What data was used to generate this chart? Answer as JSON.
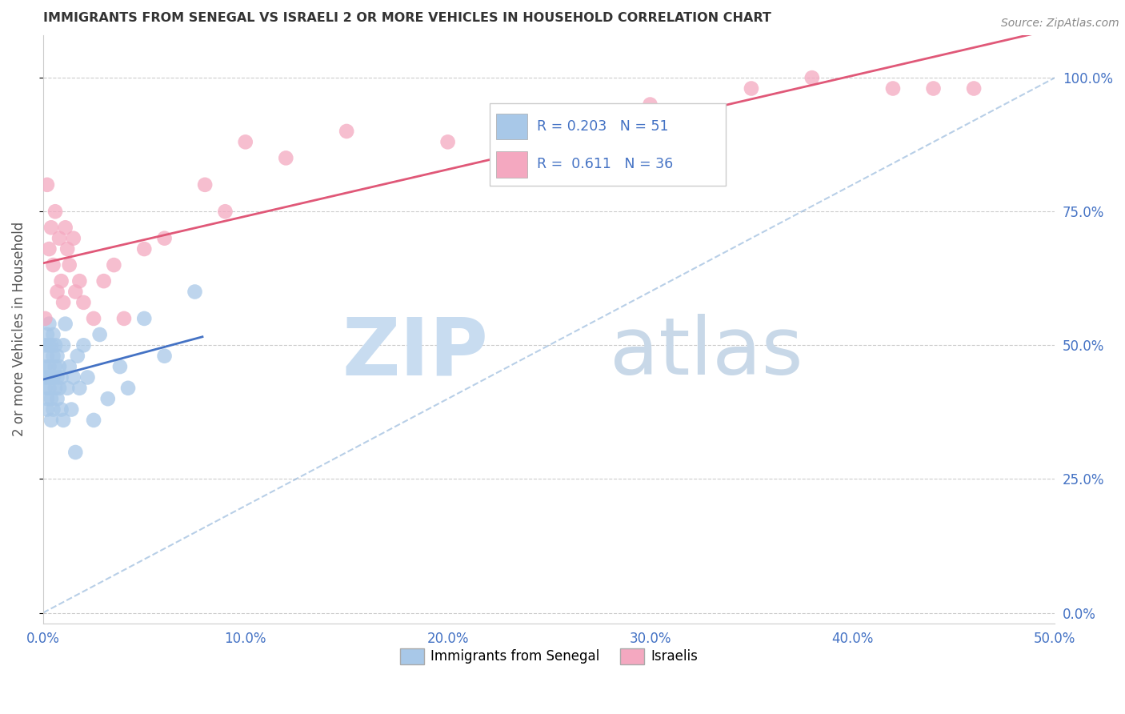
{
  "title": "IMMIGRANTS FROM SENEGAL VS ISRAELI 2 OR MORE VEHICLES IN HOUSEHOLD CORRELATION CHART",
  "source": "Source: ZipAtlas.com",
  "ylabel": "2 or more Vehicles in Household",
  "legend_labels": [
    "Immigrants from Senegal",
    "Israelis"
  ],
  "r_senegal": 0.203,
  "n_senegal": 51,
  "r_israeli": 0.611,
  "n_israeli": 36,
  "senegal_color": "#a8c8e8",
  "israeli_color": "#f4a8c0",
  "senegal_line_color": "#4472c4",
  "israeli_line_color": "#e05878",
  "xlim": [
    0.0,
    0.5
  ],
  "ylim": [
    -0.02,
    1.08
  ],
  "xticks": [
    0.0,
    0.1,
    0.2,
    0.3,
    0.4,
    0.5
  ],
  "xtick_labels": [
    "0.0%",
    "10.0%",
    "20.0%",
    "30.0%",
    "40.0%",
    "50.0%"
  ],
  "yticks": [
    0.0,
    0.25,
    0.5,
    0.75,
    1.0
  ],
  "ytick_labels": [
    "0.0%",
    "25.0%",
    "50.0%",
    "75.0%",
    "100.0%"
  ],
  "senegal_x": [
    0.001,
    0.001,
    0.001,
    0.001,
    0.002,
    0.002,
    0.002,
    0.002,
    0.002,
    0.003,
    0.003,
    0.003,
    0.003,
    0.004,
    0.004,
    0.004,
    0.004,
    0.005,
    0.005,
    0.005,
    0.005,
    0.006,
    0.006,
    0.006,
    0.007,
    0.007,
    0.007,
    0.008,
    0.008,
    0.009,
    0.009,
    0.01,
    0.01,
    0.011,
    0.012,
    0.013,
    0.014,
    0.015,
    0.016,
    0.017,
    0.018,
    0.02,
    0.022,
    0.025,
    0.028,
    0.032,
    0.038,
    0.042,
    0.05,
    0.06,
    0.075
  ],
  "senegal_y": [
    0.46,
    0.44,
    0.5,
    0.42,
    0.48,
    0.52,
    0.38,
    0.44,
    0.4,
    0.5,
    0.46,
    0.42,
    0.54,
    0.44,
    0.5,
    0.36,
    0.4,
    0.48,
    0.44,
    0.38,
    0.52,
    0.46,
    0.42,
    0.5,
    0.44,
    0.4,
    0.48,
    0.42,
    0.46,
    0.44,
    0.38,
    0.5,
    0.36,
    0.54,
    0.42,
    0.46,
    0.38,
    0.44,
    0.3,
    0.48,
    0.42,
    0.5,
    0.44,
    0.36,
    0.52,
    0.4,
    0.46,
    0.42,
    0.55,
    0.48,
    0.6
  ],
  "israeli_x": [
    0.001,
    0.002,
    0.003,
    0.004,
    0.005,
    0.006,
    0.007,
    0.008,
    0.009,
    0.01,
    0.011,
    0.012,
    0.013,
    0.015,
    0.016,
    0.018,
    0.02,
    0.025,
    0.03,
    0.035,
    0.04,
    0.05,
    0.06,
    0.08,
    0.09,
    0.1,
    0.12,
    0.15,
    0.2,
    0.25,
    0.3,
    0.35,
    0.38,
    0.42,
    0.44,
    0.46
  ],
  "israeli_y": [
    0.55,
    0.8,
    0.68,
    0.72,
    0.65,
    0.75,
    0.6,
    0.7,
    0.62,
    0.58,
    0.72,
    0.68,
    0.65,
    0.7,
    0.6,
    0.62,
    0.58,
    0.55,
    0.62,
    0.65,
    0.55,
    0.68,
    0.7,
    0.8,
    0.75,
    0.88,
    0.85,
    0.9,
    0.88,
    0.92,
    0.95,
    0.98,
    1.0,
    0.98,
    0.98,
    0.98
  ]
}
